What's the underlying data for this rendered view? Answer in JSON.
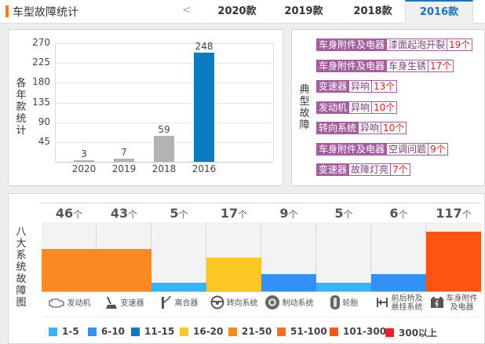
{
  "header": {
    "title": "车型故障统计",
    "prev": "<",
    "tabs": [
      {
        "label": "2020款",
        "active": false
      },
      {
        "label": "2019款",
        "active": false
      },
      {
        "label": "2018款",
        "active": false
      },
      {
        "label": "2016款",
        "active": true
      }
    ]
  },
  "year_chart": {
    "ylabel": [
      "各",
      "年",
      "款",
      "统",
      "计"
    ],
    "colors": {
      "default": "#b3b3b3",
      "active": "#0a7bc2"
    }
  },
  "chart_data": [
    {
      "type": "bar",
      "title": "",
      "xlabel": "",
      "ylabel": "各年款统计",
      "categories": [
        "2020",
        "2019",
        "2018",
        "2016"
      ],
      "values": [
        3,
        7,
        59,
        248
      ],
      "value_labels": [
        "3",
        "7",
        "59",
        "248"
      ],
      "yticks": [
        "270",
        "225",
        "180",
        "135",
        "90",
        "45"
      ],
      "ytick_values": [
        270,
        225,
        180,
        135,
        90,
        45
      ],
      "ylim": [
        0,
        270
      ],
      "grid": true,
      "highlight": "2016"
    },
    {
      "type": "bar",
      "title": "",
      "ylabel": "八大系统故障图",
      "categories": [
        "发动机",
        "变速器",
        "离合器",
        "转向系统",
        "制动系统",
        "轮胎",
        "前后桥及悬挂系统",
        "车身附件及电器"
      ],
      "values": [
        46,
        43,
        5,
        17,
        9,
        5,
        6,
        117
      ],
      "count_labels": [
        "46",
        "43",
        "5",
        "17",
        "9",
        "5",
        "6",
        "117"
      ],
      "unit": "个",
      "legend": [
        {
          "label": "1-5",
          "color": "#35b4f9"
        },
        {
          "label": "6-10",
          "color": "#3390f5"
        },
        {
          "label": "11-15",
          "color": "#0a7bc2"
        },
        {
          "label": "16-20",
          "color": "#fcc623"
        },
        {
          "label": "21-50",
          "color": "#f98a21"
        },
        {
          "label": "51-100",
          "color": "#fa6f24"
        },
        {
          "label": "101-300",
          "color": "#fd5411"
        },
        {
          "label": "300以上",
          "color": "#f81e23"
        }
      ]
    }
  ],
  "typical_faults": {
    "label": [
      "典",
      "型",
      "故",
      "障"
    ],
    "rows": [
      {
        "system": "车身附件及电器",
        "issue": "漆面起泡开裂",
        "count": "19个"
      },
      {
        "system": "车身附件及电器",
        "issue": "车身生锈",
        "count": "17个"
      },
      {
        "system": "变速器",
        "issue": "异响",
        "count": "13个"
      },
      {
        "system": "发动机",
        "issue": "异响",
        "count": "10个"
      },
      {
        "system": "转向系统",
        "issue": "异响",
        "count": "10个"
      },
      {
        "system": "车身附件及电器",
        "issue": "空调问题",
        "count": "9个"
      },
      {
        "system": "变速器",
        "issue": "故障灯亮",
        "count": "7个"
      }
    ]
  },
  "systems_chart": {
    "ylabel": [
      "八",
      "大",
      "系",
      "统",
      "故",
      "障",
      "图"
    ],
    "icons": [
      "engine-icon",
      "gear-shift-icon",
      "clutch-icon",
      "steering-wheel-icon",
      "brake-disc-icon",
      "tire-icon",
      "axle-icon",
      "battery-icon"
    ],
    "icon_labels": [
      [
        "发动机"
      ],
      [
        "变速器"
      ],
      [
        "离合器"
      ],
      [
        "转向系统"
      ],
      [
        "制动系统"
      ],
      [
        "轮胎"
      ],
      [
        "前后桥及",
        "悬挂系统"
      ],
      [
        "车身附件",
        "及电器"
      ]
    ]
  }
}
